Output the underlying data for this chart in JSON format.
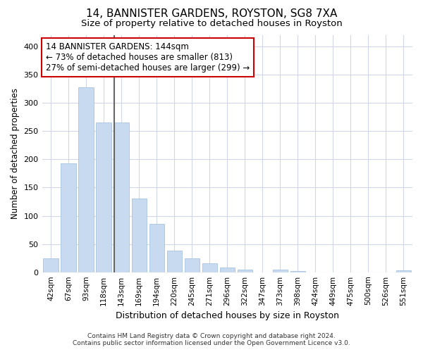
{
  "title_line1": "14, BANNISTER GARDENS, ROYSTON, SG8 7XA",
  "title_line2": "Size of property relative to detached houses in Royston",
  "xlabel": "Distribution of detached houses by size in Royston",
  "ylabel": "Number of detached properties",
  "bar_labels": [
    "42sqm",
    "67sqm",
    "93sqm",
    "118sqm",
    "143sqm",
    "169sqm",
    "194sqm",
    "220sqm",
    "245sqm",
    "271sqm",
    "296sqm",
    "322sqm",
    "347sqm",
    "373sqm",
    "398sqm",
    "424sqm",
    "449sqm",
    "475sqm",
    "500sqm",
    "526sqm",
    "551sqm"
  ],
  "bar_values": [
    24,
    193,
    328,
    265,
    265,
    130,
    86,
    38,
    25,
    16,
    8,
    4,
    0,
    5,
    2,
    0,
    0,
    0,
    0,
    0,
    3
  ],
  "bar_color": "#c8daf0",
  "bar_edgecolor": "#a8c4e0",
  "vline_x_index": 4.5,
  "vline_color": "#666666",
  "annotation_text_line1": "14 BANNISTER GARDENS: 144sqm",
  "annotation_text_line2": "← 73% of detached houses are smaller (813)",
  "annotation_text_line3": "27% of semi-detached houses are larger (299) →",
  "annotation_box_edgecolor": "#cc0000",
  "annotation_box_facecolor": "white",
  "ylim": [
    0,
    420
  ],
  "yticks": [
    0,
    50,
    100,
    150,
    200,
    250,
    300,
    350,
    400
  ],
  "footer_line1": "Contains HM Land Registry data © Crown copyright and database right 2024.",
  "footer_line2": "Contains public sector information licensed under the Open Government Licence v3.0.",
  "background_color": "#ffffff",
  "grid_color": "#d0d8e8",
  "title_fontsize": 11,
  "subtitle_fontsize": 9.5,
  "annotation_fontsize": 8.5,
  "xlabel_fontsize": 9,
  "ylabel_fontsize": 8.5,
  "tick_fontsize": 7.5,
  "footer_fontsize": 6.5
}
